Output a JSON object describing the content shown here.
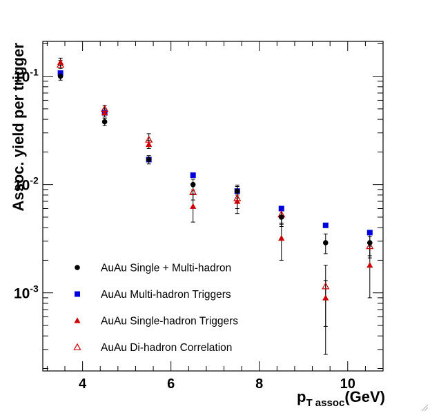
{
  "chart_data": {
    "type": "scatter",
    "title": "",
    "xlabel": {
      "main": "p",
      "sub": "T assoc",
      "unit": "(GeV)"
    },
    "ylabel": "Assoc. yield per trigger",
    "xlim": [
      3.1,
      10.8
    ],
    "ylim": [
      0.00019,
      0.21
    ],
    "yscale": "log",
    "x_ticks": [
      4,
      6,
      8,
      10
    ],
    "x_tick_labels": [
      "4",
      "6",
      "8",
      "10"
    ],
    "y_ticks": [
      0.001,
      0.01,
      0.1
    ],
    "y_tick_labels": [
      {
        "base": "10",
        "exp": "-3"
      },
      {
        "base": "10",
        "exp": "-2"
      },
      {
        "base": "10",
        "exp": "-1"
      }
    ],
    "grid": false,
    "legend_position": "lower-left",
    "series": [
      {
        "name": "AuAu Single + Multi-hadron",
        "marker": "circle",
        "color": "#000000",
        "points": [
          {
            "x": 3.5,
            "y": 0.1,
            "lo": 0.092,
            "hi": 0.108
          },
          {
            "x": 4.5,
            "y": 0.038,
            "lo": 0.035,
            "hi": 0.041
          },
          {
            "x": 5.5,
            "y": 0.017,
            "lo": 0.0155,
            "hi": 0.0185
          },
          {
            "x": 6.5,
            "y": 0.01,
            "lo": 0.0089,
            "hi": 0.0112
          },
          {
            "x": 7.5,
            "y": 0.0087,
            "lo": 0.0075,
            "hi": 0.0099
          },
          {
            "x": 8.5,
            "y": 0.005,
            "lo": 0.0041,
            "hi": 0.0059
          },
          {
            "x": 9.5,
            "y": 0.0029,
            "lo": 0.0023,
            "hi": 0.0035
          },
          {
            "x": 10.5,
            "y": 0.0029,
            "lo": 0.0022,
            "hi": 0.0036
          }
        ]
      },
      {
        "name": "AuAu Multi-hadron Triggers",
        "marker": "square",
        "color": "#0000dd",
        "points": [
          {
            "x": 3.5,
            "y": 0.107
          },
          {
            "x": 4.5,
            "y": 0.046
          },
          {
            "x": 5.5,
            "y": 0.017
          },
          {
            "x": 6.5,
            "y": 0.0122
          },
          {
            "x": 7.5,
            "y": 0.0087
          },
          {
            "x": 8.5,
            "y": 0.006
          },
          {
            "x": 9.5,
            "y": 0.0042
          },
          {
            "x": 10.5,
            "y": 0.0036
          }
        ]
      },
      {
        "name": "AuAu Single-hadron Triggers",
        "marker": "triangle",
        "color": "#cc0000",
        "points": [
          {
            "x": 3.5,
            "y": 0.135,
            "lo": 0.125,
            "hi": 0.147
          },
          {
            "x": 4.5,
            "y": 0.046,
            "lo": 0.042,
            "hi": 0.05
          },
          {
            "x": 5.5,
            "y": 0.0235,
            "lo": 0.0215,
            "hi": 0.0255
          },
          {
            "x": 6.5,
            "y": 0.0063,
            "lo": 0.0045,
            "hi": 0.0082
          },
          {
            "x": 7.5,
            "y": 0.007,
            "lo": 0.006,
            "hi": 0.008
          },
          {
            "x": 8.5,
            "y": 0.0032,
            "lo": 0.002,
            "hi": 0.0044
          },
          {
            "x": 9.5,
            "y": 0.0009,
            "lo": 0.00049,
            "hi": 0.0013
          },
          {
            "x": 10.5,
            "y": 0.0018,
            "lo": 0.0009,
            "hi": 0.0027
          }
        ]
      },
      {
        "name": "AuAu Di-hadron Correlation",
        "marker": "open-triangle",
        "color": "#cc0000",
        "points": [
          {
            "x": 3.5,
            "y": 0.128,
            "lo": 0.118,
            "hi": 0.14
          },
          {
            "x": 4.5,
            "y": 0.05,
            "lo": 0.046,
            "hi": 0.054
          },
          {
            "x": 5.5,
            "y": 0.026,
            "lo": 0.0225,
            "hi": 0.0295
          },
          {
            "x": 6.5,
            "y": 0.0085,
            "lo": 0.0072,
            "hi": 0.0098
          },
          {
            "x": 7.5,
            "y": 0.0075,
            "lo": 0.0054,
            "hi": 0.0096
          },
          {
            "x": 8.5,
            "y": 0.0053,
            "lo": 0.0043,
            "hi": 0.0063
          },
          {
            "x": 9.5,
            "y": 0.00115,
            "lo": 0.00027,
            "hi": 0.0018
          },
          {
            "x": 10.5,
            "y": 0.0027,
            "lo": 0.0021,
            "hi": 0.0033
          }
        ]
      }
    ]
  }
}
